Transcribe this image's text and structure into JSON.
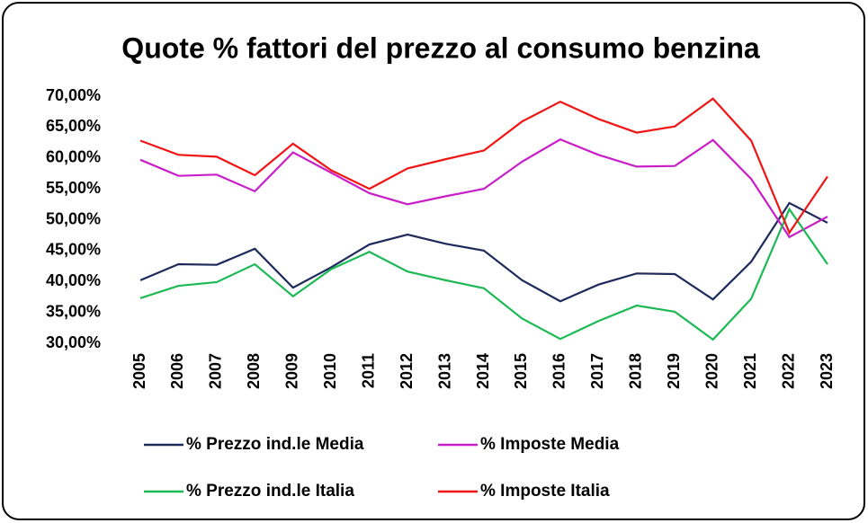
{
  "chart_data": {
    "type": "line",
    "title": "Quote % fattori del prezzo al consumo benzina",
    "categories": [
      "2005",
      "2006",
      "2007",
      "2008",
      "2009",
      "2010",
      "2011",
      "2012",
      "2013",
      "2014",
      "2015",
      "2016",
      "2017",
      "2018",
      "2019",
      "2020",
      "2021",
      "2022",
      "2023"
    ],
    "series": [
      {
        "name": "% Prezzo ind.le Media",
        "color": "#1f2a5c",
        "values": [
          40.2,
          42.8,
          42.7,
          45.3,
          39.0,
          42.3,
          46.0,
          47.6,
          46.1,
          45.0,
          40.2,
          36.8,
          39.5,
          41.3,
          41.2,
          37.1,
          43.2,
          52.7,
          49.5
        ]
      },
      {
        "name": "% Imposte Media",
        "color": "#c81ec8",
        "values": [
          59.7,
          57.1,
          57.3,
          54.6,
          60.9,
          57.6,
          54.3,
          52.5,
          53.8,
          55.0,
          59.4,
          63.0,
          60.5,
          58.6,
          58.7,
          62.9,
          56.6,
          47.2,
          50.5
        ]
      },
      {
        "name": "% Prezzo ind.le Italia",
        "color": "#1db954",
        "values": [
          37.3,
          39.3,
          39.9,
          42.8,
          37.6,
          42.0,
          44.8,
          41.6,
          40.2,
          38.9,
          34.0,
          30.7,
          33.6,
          36.1,
          35.1,
          30.6,
          37.2,
          51.7,
          42.8
        ]
      },
      {
        "name": "% Imposte Italia",
        "color": "#f01414",
        "values": [
          62.8,
          60.5,
          60.2,
          57.2,
          62.3,
          58.0,
          55.0,
          58.3,
          59.8,
          61.2,
          65.9,
          69.1,
          66.3,
          64.1,
          65.1,
          69.6,
          62.8,
          47.9,
          57.0
        ]
      }
    ],
    "ylim": [
      30,
      70
    ],
    "yticks": [
      {
        "value": 30,
        "label": "30,00%"
      },
      {
        "value": 35,
        "label": "35,00%"
      },
      {
        "value": 40,
        "label": "40,00%"
      },
      {
        "value": 45,
        "label": "45,00%"
      },
      {
        "value": 50,
        "label": "50,00%"
      },
      {
        "value": 55,
        "label": "55,00%"
      },
      {
        "value": 60,
        "label": "60,00%"
      },
      {
        "value": 65,
        "label": "65,00%"
      },
      {
        "value": 70,
        "label": "70,00%"
      }
    ],
    "grid": false
  }
}
